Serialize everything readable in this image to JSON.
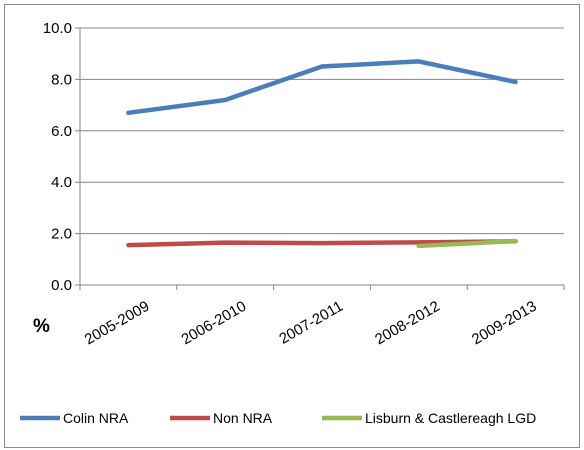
{
  "chart_data": {
    "type": "line",
    "title": "",
    "xlabel": "",
    "ylabel": "%",
    "categories": [
      "2005-2009",
      "2006-2010",
      "2007-2011",
      "2008-2012",
      "2009-2013"
    ],
    "series": [
      {
        "name": "Colin NRA",
        "color": "#4a7ebb",
        "values": [
          6.7,
          7.2,
          8.5,
          8.7,
          7.9
        ]
      },
      {
        "name": "Non NRA",
        "color": "#be4b48",
        "values": [
          1.55,
          1.65,
          1.63,
          1.66,
          1.7
        ]
      },
      {
        "name": "Lisburn & Castlereagh LGD",
        "color": "#98b954",
        "values": [
          null,
          null,
          null,
          1.52,
          1.71
        ]
      }
    ],
    "ylim": [
      0,
      10
    ],
    "yticks": [
      "0.0",
      "2.0",
      "4.0",
      "6.0",
      "8.0",
      "10.0"
    ],
    "grid": true,
    "legend_position": "bottom"
  }
}
